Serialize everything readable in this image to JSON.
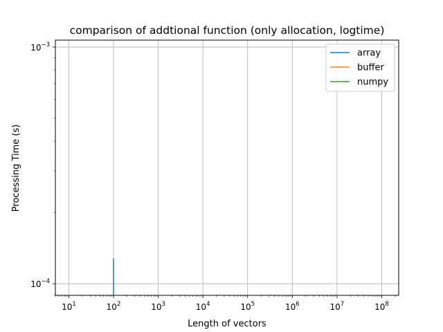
{
  "chart_data": {
    "type": "line",
    "title": "comparison of addtional function (only allocation, logtime)",
    "xlabel": "Length of vectors",
    "ylabel": "Processing Time (s)",
    "xscale": "log",
    "yscale": "log",
    "xlim": [
      5,
      240000000
    ],
    "ylim": [
      8.93e-05,
      0.00107
    ],
    "grid": true,
    "legend_position": "top-right",
    "x_ticks": [
      {
        "base": "10",
        "exp": "1",
        "value": 10
      },
      {
        "base": "10",
        "exp": "2",
        "value": 100
      },
      {
        "base": "10",
        "exp": "3",
        "value": 1000
      },
      {
        "base": "10",
        "exp": "4",
        "value": 10000
      },
      {
        "base": "10",
        "exp": "5",
        "value": 100000
      },
      {
        "base": "10",
        "exp": "6",
        "value": 1000000
      },
      {
        "base": "10",
        "exp": "7",
        "value": 10000000
      },
      {
        "base": "10",
        "exp": "8",
        "value": 100000000
      }
    ],
    "y_ticks": [
      {
        "base": "10",
        "exp": "−3",
        "value": 0.001
      },
      {
        "base": "10",
        "exp": "−4",
        "value": 0.0001
      }
    ],
    "series": [
      {
        "name": "array",
        "color": "#1f77b4",
        "x": [
          100,
          100
        ],
        "y": [
          0.000128,
          8.93e-05
        ]
      },
      {
        "name": "buffer",
        "color": "#ff7f0e",
        "x": [],
        "y": []
      },
      {
        "name": "numpy",
        "color": "#2ca02c",
        "x": [],
        "y": []
      }
    ]
  }
}
